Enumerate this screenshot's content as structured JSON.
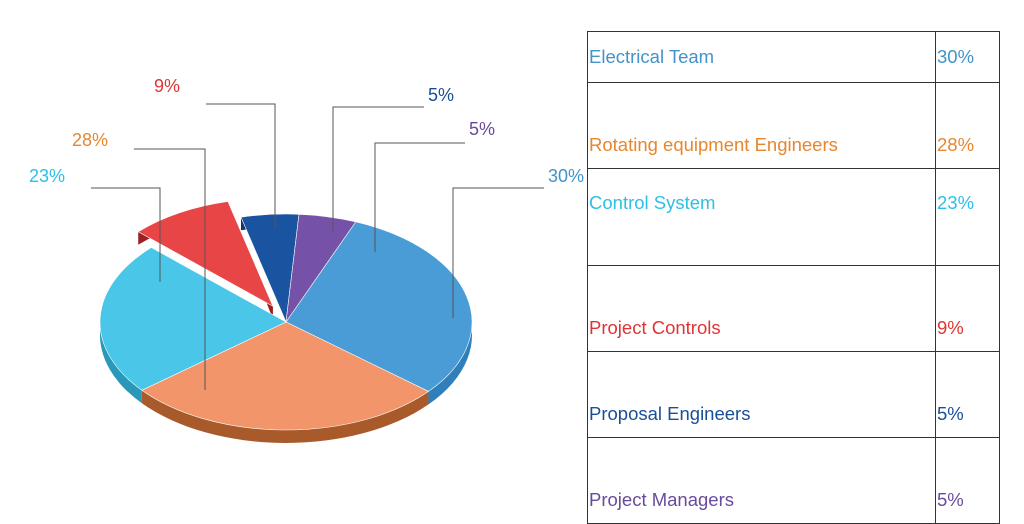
{
  "chart_data": {
    "type": "pie",
    "title": "",
    "series": [
      {
        "label": "Electrical Team",
        "value": 30,
        "display": "30%",
        "color": "#4a9cd6",
        "side": "#2f7fba",
        "explode": false
      },
      {
        "label": "Rotating equipment Engineers",
        "value": 28,
        "display": "28%",
        "color": "#f2956a",
        "side": "#a85a2a",
        "explode": false
      },
      {
        "label": "Control System",
        "value": 23,
        "display": "23%",
        "color": "#49c6e8",
        "side": "#2a98b8",
        "explode": false
      },
      {
        "label": "Project Controls",
        "value": 9,
        "display": "9%",
        "color": "#e84646",
        "side": "#9c1f22",
        "explode": true
      },
      {
        "label": "Proposal Engineers",
        "value": 5,
        "display": "5%",
        "color": "#1a53a0",
        "side": "#0f3570",
        "explode": false
      },
      {
        "label": "Project Managers",
        "value": 5,
        "display": "5%",
        "color": "#7552a8",
        "side": "#4e337a",
        "explode": false
      }
    ]
  },
  "legend": {
    "rows": [
      {
        "label": "Electrical Team",
        "value": "30%",
        "color": "#4193c9"
      },
      {
        "label": "Rotating equipment Engineers",
        "value": "28%",
        "color": "#e8862e"
      },
      {
        "label": "Control System",
        "value": "23%",
        "color": "#2cc0e8"
      },
      {
        "label": "Project Controls",
        "value": "9%",
        "color": "#e03434"
      },
      {
        "label": "Proposal Engineers",
        "value": "5%",
        "color": "#1a4f96"
      },
      {
        "label": "Project Managers",
        "value": "5%",
        "color": "#6a4a9c"
      }
    ]
  }
}
